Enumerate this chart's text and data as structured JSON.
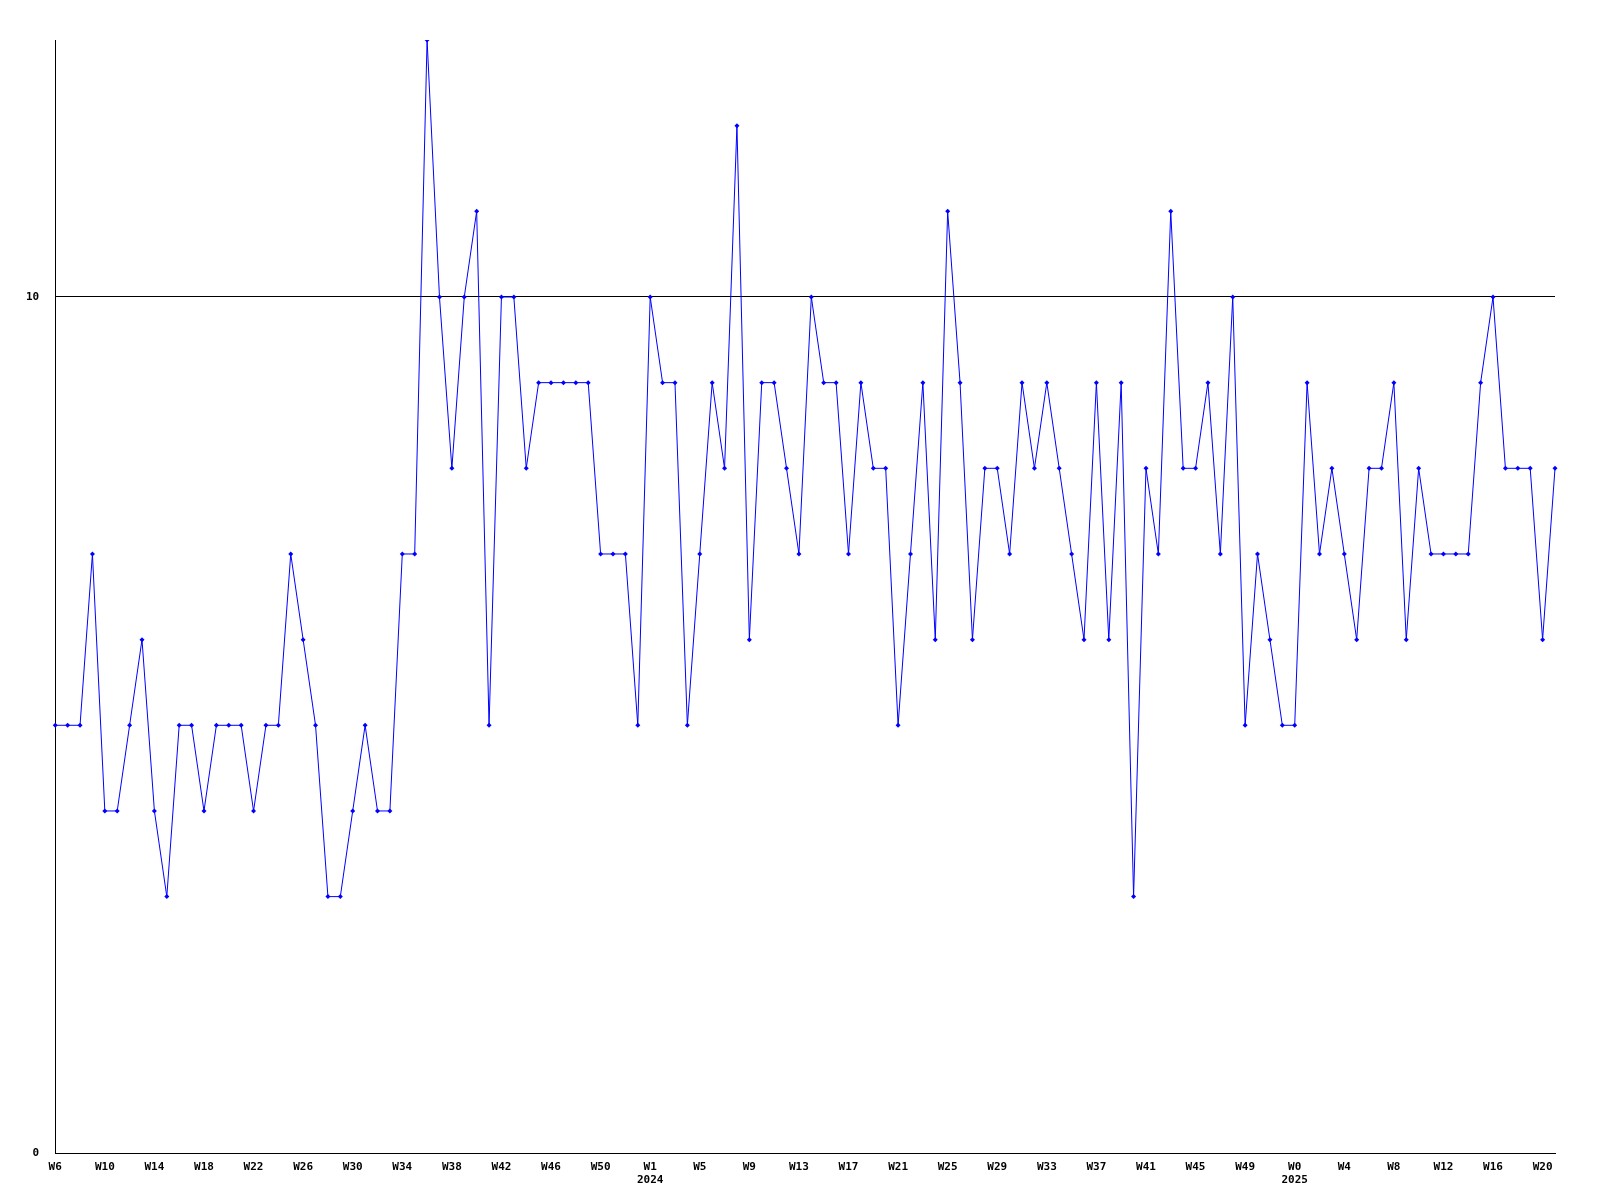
{
  "chart_data": {
    "type": "line",
    "categories": [
      "W6",
      null,
      null,
      null,
      "W10",
      null,
      null,
      null,
      "W14",
      null,
      null,
      null,
      "W18",
      null,
      null,
      null,
      "W22",
      null,
      null,
      null,
      "W26",
      null,
      null,
      null,
      "W30",
      null,
      null,
      null,
      "W34",
      null,
      null,
      null,
      "W38",
      null,
      null,
      null,
      "W42",
      null,
      null,
      null,
      "W46",
      null,
      null,
      null,
      "W50",
      null,
      null,
      null,
      "W1\n2024",
      null,
      null,
      null,
      "W5",
      null,
      null,
      null,
      "W9",
      null,
      null,
      null,
      "W13",
      null,
      null,
      null,
      "W17",
      null,
      null,
      null,
      "W21",
      null,
      null,
      null,
      "W25",
      null,
      null,
      null,
      "W29",
      null,
      null,
      null,
      "W33",
      null,
      null,
      null,
      "W37",
      null,
      null,
      null,
      "W41",
      null,
      null,
      null,
      "W45",
      null,
      null,
      null,
      "W49",
      null,
      null,
      null,
      "W0\n2025",
      null,
      null,
      null,
      "W4",
      null,
      null,
      null,
      "W8",
      null,
      null,
      null,
      "W12",
      null,
      null,
      null,
      "W16",
      null,
      null,
      null,
      "W20",
      null
    ],
    "series": [
      {
        "color": "#0000ff",
        "values": [
          5,
          5,
          5,
          7,
          4,
          4,
          5,
          6,
          4,
          3,
          5,
          5,
          4,
          5,
          5,
          5,
          4,
          5,
          5,
          7,
          6,
          5,
          3,
          3,
          4,
          5,
          4,
          4,
          7,
          7,
          13,
          10,
          8,
          10,
          11,
          5,
          10,
          10,
          8,
          9,
          9,
          9,
          9,
          9,
          7,
          7,
          7,
          5,
          10,
          9,
          9,
          5,
          7,
          9,
          8,
          12,
          6,
          9,
          9,
          8,
          7,
          10,
          9,
          9,
          7,
          9,
          8,
          8,
          5,
          7,
          9,
          6,
          11,
          9,
          6,
          8,
          8,
          7,
          9,
          8,
          9,
          8,
          7,
          6,
          9,
          6,
          9,
          3,
          8,
          7,
          11,
          8,
          8,
          9,
          7,
          10,
          5,
          7,
          6,
          5,
          5,
          9,
          7,
          8,
          7,
          6,
          8,
          8,
          9,
          6,
          8,
          7,
          7,
          7,
          7,
          9,
          10,
          8,
          8,
          8,
          6,
          8
        ]
      }
    ],
    "ylim": [
      0,
      13
    ],
    "yticks": [
      0,
      10
    ],
    "grid": "y",
    "legend": false,
    "marker": "diamond",
    "line_style": "solid"
  }
}
